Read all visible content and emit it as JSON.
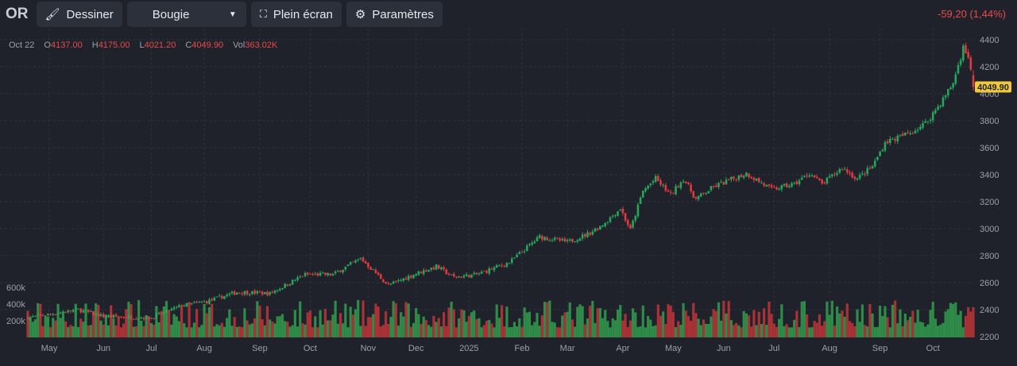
{
  "toolbar": {
    "symbol": "OR",
    "draw_label": "Dessiner",
    "chart_type": "Bougie",
    "fullscreen_label": "Plein écran",
    "settings_label": "Paramètres"
  },
  "change": "-59,20 (1,44%)",
  "legend": {
    "date": "Oct 22",
    "o_label": "O",
    "o": "4137.00",
    "h_label": "H",
    "h": "4175.00",
    "l_label": "L",
    "l": "4021.20",
    "c_label": "C",
    "c": "4049.90",
    "vol_label": "Vol",
    "vol": "363.02K"
  },
  "colors": {
    "up": "#26a65b",
    "down": "#e0393e",
    "vol_up": "#2e8b48",
    "vol_down": "#a83236",
    "last_price": "#f0c93a"
  },
  "chart_data": {
    "type": "candlestick",
    "last_price_label": "4049.90",
    "ylim": [
      2200,
      4400
    ],
    "y_ticks": [
      2200,
      2400,
      2600,
      2800,
      3000,
      3200,
      3400,
      3600,
      3800,
      4000,
      4200,
      4400
    ],
    "vol_ticks": [
      {
        "v": 200000,
        "label": "200k"
      },
      {
        "v": 400000,
        "label": "400k"
      },
      {
        "v": 600000,
        "label": "600k"
      }
    ],
    "n_days": 376,
    "x_ticks": [
      {
        "d": 8.5,
        "label": "May"
      },
      {
        "d": 30,
        "label": "Jun"
      },
      {
        "d": 49,
        "label": "Jul"
      },
      {
        "d": 70,
        "label": "Aug"
      },
      {
        "d": 92,
        "label": "Sep"
      },
      {
        "d": 112,
        "label": "Oct"
      },
      {
        "d": 135,
        "label": "Nov"
      },
      {
        "d": 154,
        "label": "Dec"
      },
      {
        "d": 175,
        "label": "2025"
      },
      {
        "d": 196,
        "label": "Feb"
      },
      {
        "d": 214,
        "label": "Mar"
      },
      {
        "d": 236,
        "label": "Apr"
      },
      {
        "d": 256,
        "label": "May"
      },
      {
        "d": 276,
        "label": "Jun"
      },
      {
        "d": 296,
        "label": "Jul"
      },
      {
        "d": 318,
        "label": "Aug"
      },
      {
        "d": 338,
        "label": "Sep"
      },
      {
        "d": 359,
        "label": "Oct"
      }
    ],
    "close_anchors": [
      [
        0,
        2340
      ],
      [
        20,
        2400
      ],
      [
        30,
        2350
      ],
      [
        49,
        2340
      ],
      [
        61,
        2430
      ],
      [
        71,
        2460
      ],
      [
        83,
        2530
      ],
      [
        96,
        2520
      ],
      [
        110,
        2660
      ],
      [
        121,
        2660
      ],
      [
        132,
        2780
      ],
      [
        143,
        2580
      ],
      [
        153,
        2660
      ],
      [
        162,
        2720
      ],
      [
        169,
        2640
      ],
      [
        178,
        2660
      ],
      [
        191,
        2750
      ],
      [
        203,
        2940
      ],
      [
        214,
        2900
      ],
      [
        222,
        2960
      ],
      [
        228,
        3030
      ],
      [
        235,
        3150
      ],
      [
        239,
        2990
      ],
      [
        244,
        3280
      ],
      [
        249,
        3370
      ],
      [
        255,
        3250
      ],
      [
        260,
        3370
      ],
      [
        265,
        3220
      ],
      [
        272,
        3310
      ],
      [
        285,
        3410
      ],
      [
        295,
        3290
      ],
      [
        304,
        3330
      ],
      [
        310,
        3410
      ],
      [
        315,
        3330
      ],
      [
        323,
        3450
      ],
      [
        329,
        3370
      ],
      [
        335,
        3460
      ],
      [
        340,
        3640
      ],
      [
        350,
        3710
      ],
      [
        356,
        3780
      ],
      [
        362,
        3930
      ],
      [
        367,
        4080
      ],
      [
        371,
        4340
      ],
      [
        373,
        4280
      ],
      [
        375,
        4050
      ]
    ],
    "last_candle": {
      "o": 4137,
      "h": 4175,
      "l": 4021.2,
      "c": 4049.9,
      "v": 363020
    },
    "volume_range": [
      120000,
      450000
    ]
  }
}
